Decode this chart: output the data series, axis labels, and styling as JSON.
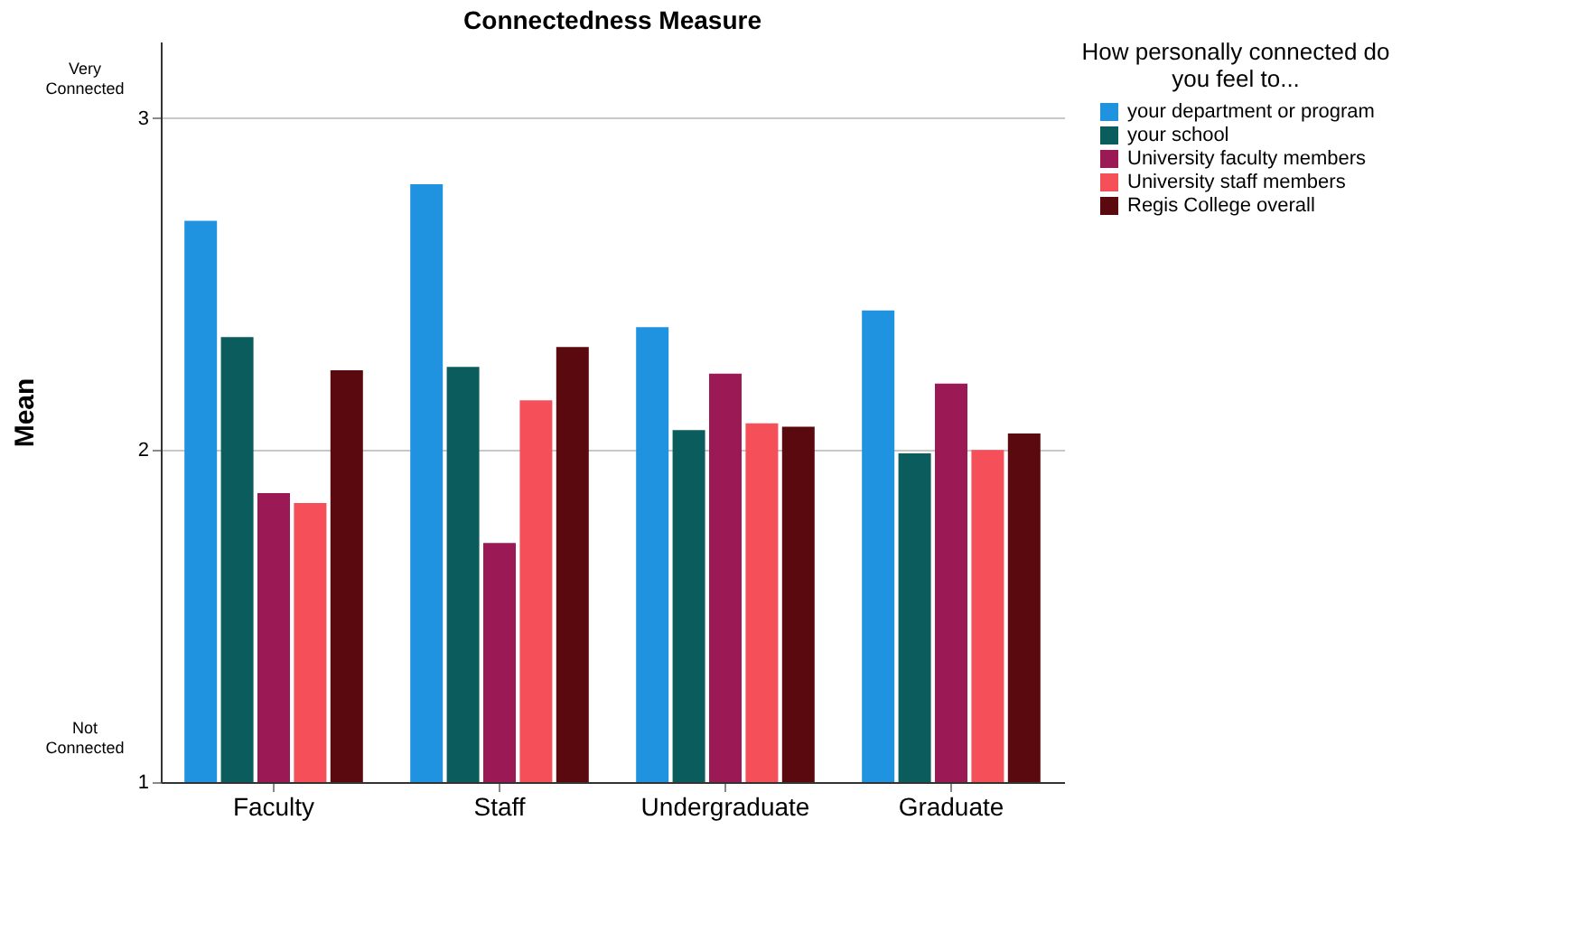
{
  "chart_data": {
    "type": "bar",
    "title": "Connectedness Measure",
    "ylabel": "Mean",
    "legend_title": "How personally connected do you feel to...",
    "legend": "right",
    "grid": "y",
    "categories": [
      "Faculty",
      "Staff",
      "Undergraduate",
      "Graduate"
    ],
    "ylim": [
      1,
      3.23
    ],
    "yticks": [
      1,
      2,
      3
    ],
    "annotations": [
      "Very Connected",
      "Not Connected"
    ],
    "series": [
      {
        "name": "your department or program",
        "color": "#1f93e0",
        "values": [
          2.69,
          2.8,
          2.37,
          2.42
        ]
      },
      {
        "name": "your school",
        "color": "#0b5c5c",
        "values": [
          2.34,
          2.25,
          2.06,
          1.99
        ]
      },
      {
        "name": "University faculty members",
        "color": "#9b1a55",
        "values": [
          1.87,
          1.72,
          2.23,
          2.2
        ]
      },
      {
        "name": "University staff members",
        "color": "#f5505a",
        "values": [
          1.84,
          2.15,
          2.08,
          2.0
        ]
      },
      {
        "name": "Regis College overall",
        "color": "#5a0a0e",
        "values": [
          2.24,
          2.31,
          2.07,
          2.05
        ]
      }
    ]
  }
}
